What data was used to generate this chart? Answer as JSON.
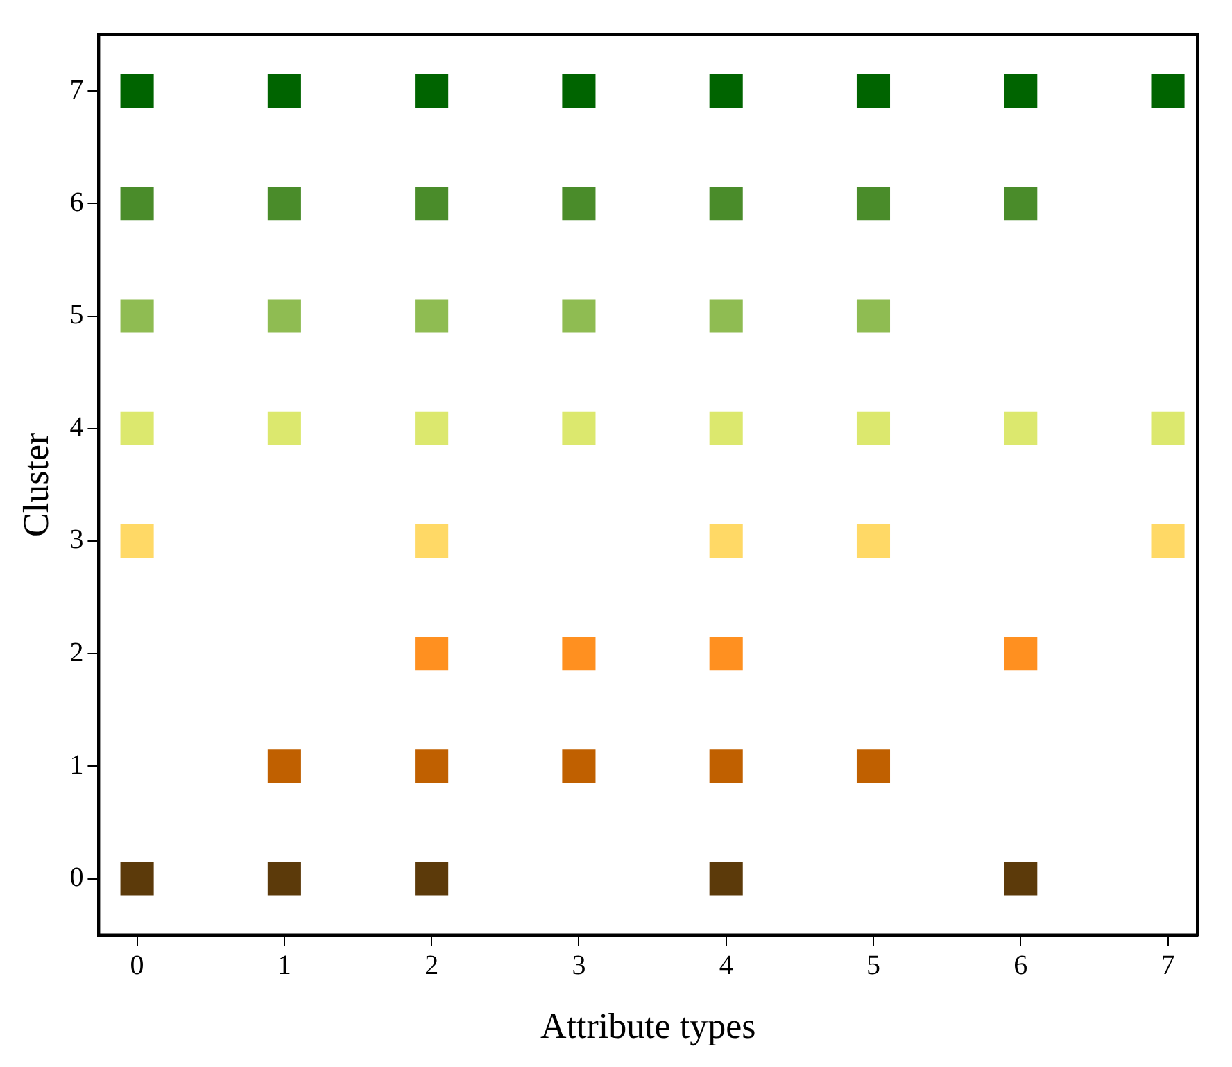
{
  "chart_data": {
    "type": "scatter",
    "xlabel": "Attribute types",
    "ylabel": "Cluster",
    "marker": "square",
    "grid": false,
    "xlim": [
      -0.26,
      7.2
    ],
    "xticks": [
      0,
      1,
      2,
      3,
      4,
      5,
      6,
      7
    ],
    "ylim": [
      -0.5,
      7.5
    ],
    "yticks": [
      0,
      1,
      2,
      3,
      4,
      5,
      6,
      7
    ],
    "series": [
      {
        "color": "#5c3a0a",
        "x": [
          0,
          1,
          2,
          4,
          6
        ],
        "values": [
          0,
          0,
          0,
          0,
          0
        ]
      },
      {
        "color": "#c06000",
        "x": [
          1,
          2,
          3,
          4,
          5
        ],
        "values": [
          1,
          1,
          1,
          1,
          1
        ]
      },
      {
        "color": "#ff9020",
        "x": [
          2,
          3,
          4,
          6
        ],
        "values": [
          2,
          2,
          2,
          2
        ]
      },
      {
        "color": "#ffd966",
        "x": [
          0,
          2,
          4,
          5,
          7
        ],
        "values": [
          3,
          3,
          3,
          3,
          3
        ]
      },
      {
        "color": "#dce86e",
        "x": [
          0,
          1,
          2,
          3,
          4,
          5,
          6,
          7
        ],
        "values": [
          4,
          4,
          4,
          4,
          4,
          4,
          4,
          4
        ]
      },
      {
        "color": "#8fbc52",
        "x": [
          0,
          1,
          2,
          3,
          4,
          5
        ],
        "values": [
          5,
          5,
          5,
          5,
          5,
          5
        ]
      },
      {
        "color": "#4a8c2a",
        "x": [
          0,
          1,
          2,
          3,
          4,
          5,
          6
        ],
        "values": [
          6,
          6,
          6,
          6,
          6,
          6,
          6
        ]
      },
      {
        "color": "#006400",
        "x": [
          0,
          1,
          2,
          3,
          4,
          5,
          6,
          7
        ],
        "values": [
          7,
          7,
          7,
          7,
          7,
          7,
          7,
          7
        ]
      }
    ]
  }
}
